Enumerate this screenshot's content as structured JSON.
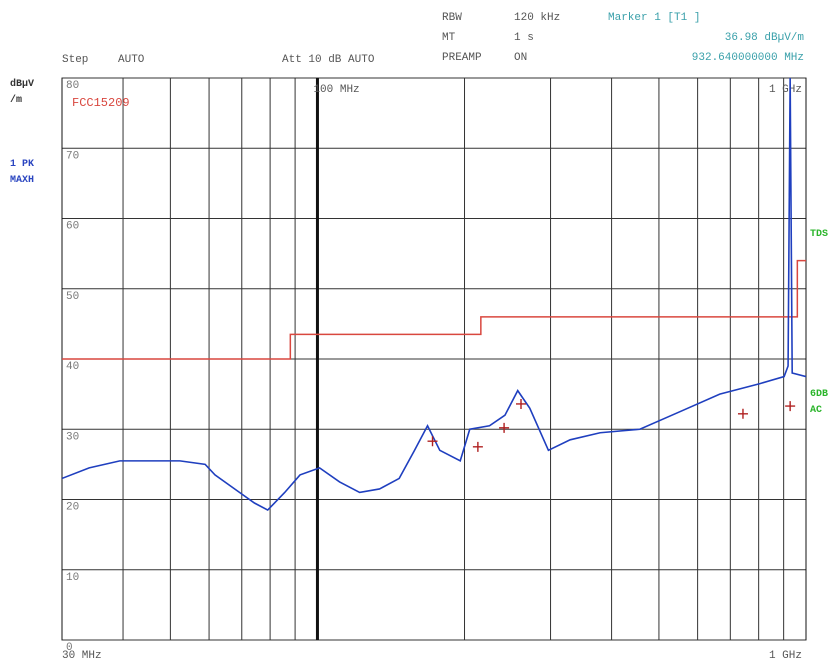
{
  "header": {
    "rbw": "RBW",
    "rbw_value": "120 kHz",
    "mt": "MT",
    "mt_value": "1 s",
    "preamp": "PREAMP",
    "preamp_value": "ON",
    "marker": "Marker 1 [T1 ]",
    "marker_level": "36.98 dBµV/m",
    "marker_freq": "932.640000000 MHz",
    "step": "Step",
    "step_value": "AUTO",
    "att": "Att 10 dB AUTO",
    "unit_1": "dBµV",
    "unit_2": "/m",
    "trace_1": "1 PK",
    "trace_2": "MAXH",
    "side_1": "TDS",
    "side_2": "6DB",
    "side_3": "AC"
  },
  "chart_data": {
    "type": "line",
    "xscale": "log",
    "xlim": [
      30,
      1000
    ],
    "ylim": [
      0,
      80
    ],
    "xticks": [
      {
        "value": 30,
        "label": "30 MHz"
      },
      {
        "value": 100,
        "label": "100 MHz"
      },
      {
        "value": 1000,
        "label": "1 GHz"
      }
    ],
    "xgrid_minor": [
      40,
      50,
      60,
      70,
      80,
      90,
      200,
      300,
      400,
      500,
      600,
      700,
      800,
      900
    ],
    "yticks": [
      0,
      10,
      20,
      30,
      40,
      50,
      60,
      70,
      80
    ],
    "grid": true,
    "series": [
      {
        "name": "FCC15209",
        "color": "#d9473f",
        "step": true,
        "x": [
          30,
          88,
          216,
          960,
          1000
        ],
        "values": [
          40,
          43.5,
          46,
          54,
          54
        ]
      },
      {
        "color": "#1f3fbf",
        "x": [
          30,
          34.1,
          39.4,
          45.3,
          52.3,
          58.9,
          61.7,
          69.3,
          74.3,
          79.1,
          85.7,
          92.1,
          101,
          111,
          122,
          134,
          147,
          158,
          168,
          178,
          196,
          205,
          225,
          242,
          257,
          272,
          297,
          329,
          379,
          457,
          552,
          666,
          805,
          902,
          919,
          928,
          937,
          1000
        ],
        "values": [
          23,
          24.5,
          25.5,
          25.5,
          25.5,
          25,
          23.5,
          21,
          19.5,
          18.5,
          21,
          23.5,
          24.5,
          22.5,
          21,
          21.5,
          23,
          27,
          30.5,
          27,
          25.5,
          30,
          30.5,
          32,
          35.5,
          33,
          27,
          28.5,
          29.5,
          30,
          32.5,
          35,
          36.5,
          37.5,
          39,
          80,
          38,
          37.5
        ]
      }
    ],
    "markers": {
      "color": "#b02020",
      "x": [
        172,
        213,
        241,
        261,
        743,
        928
      ],
      "values": [
        28.3,
        27.5,
        30.2,
        33.6,
        32.2,
        33.3
      ]
    }
  }
}
